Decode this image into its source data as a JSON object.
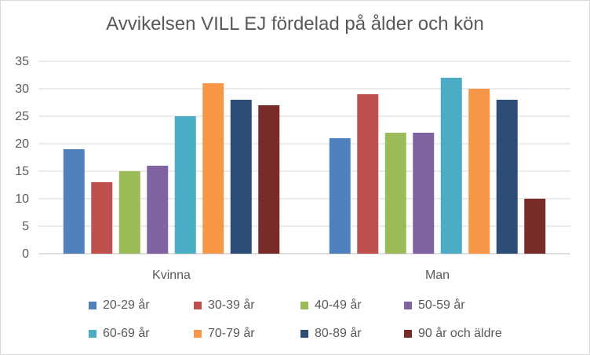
{
  "chart_data": {
    "type": "bar",
    "title": "Avvikelsen VILL EJ fördelad på ålder och kön",
    "categories": [
      "Kvinna",
      "Man"
    ],
    "ylim": [
      0,
      35
    ],
    "yticks": [
      0,
      5,
      10,
      15,
      20,
      25,
      30,
      35
    ],
    "grid": true,
    "legend_position": "bottom",
    "series": [
      {
        "name": "20-29 år",
        "color": "#4f81bd",
        "values": [
          19,
          21
        ]
      },
      {
        "name": "30-39 år",
        "color": "#c0504d",
        "values": [
          13,
          29
        ]
      },
      {
        "name": "40-49 år",
        "color": "#9bbb59",
        "values": [
          15,
          22
        ]
      },
      {
        "name": "50-59 år",
        "color": "#8064a2",
        "values": [
          16,
          22
        ]
      },
      {
        "name": "60-69 år",
        "color": "#4bacc6",
        "values": [
          25,
          32
        ]
      },
      {
        "name": "70-79 år",
        "color": "#f79646",
        "values": [
          31,
          30
        ]
      },
      {
        "name": "80-89 år",
        "color": "#2c4d75",
        "values": [
          28,
          28
        ]
      },
      {
        "name": "90 år och äldre",
        "color": "#772c2a",
        "values": [
          27,
          10
        ]
      }
    ]
  }
}
